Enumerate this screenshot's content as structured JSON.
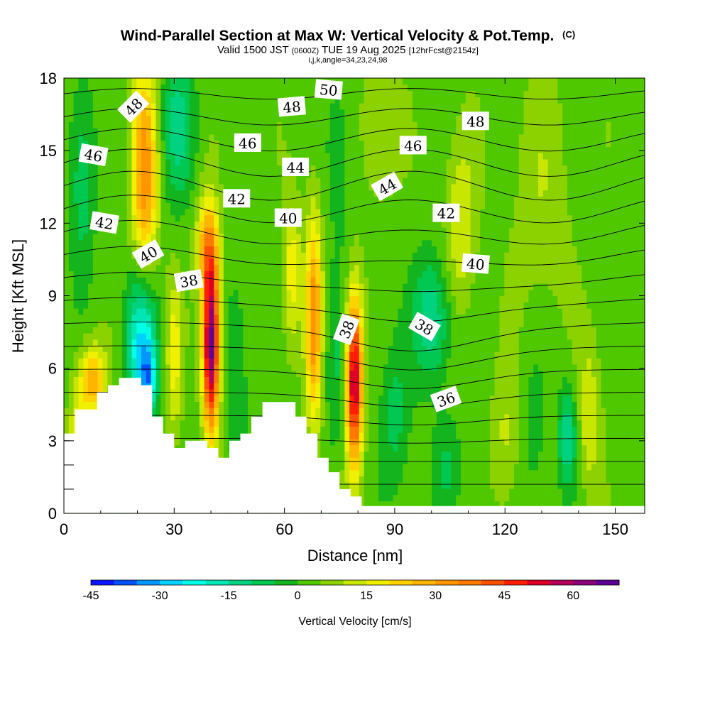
{
  "title": {
    "main": "Wind-Parallel Section at Max W: Vertical Velocity & Pot.Temp.",
    "main_suffix": "(C)",
    "valid_prefix": "Valid 1500 JST",
    "valid_utc": "(0600Z)",
    "valid_date": "TUE 19 Aug 2025",
    "forecast_info": "[12hrFcst@2154z]",
    "indices": "i,j,k,angle=34,23,24,98"
  },
  "chart_data": {
    "type": "heatmap",
    "xlabel": "Distance [nm]",
    "ylabel": "Height [Kft MSL]",
    "xlim": [
      0,
      158
    ],
    "ylim": [
      0,
      18
    ],
    "x_ticks": [
      "0",
      "30",
      "60",
      "90",
      "120",
      "150"
    ],
    "y_ticks": [
      "0",
      "3",
      "6",
      "9",
      "12",
      "15",
      "18"
    ],
    "x_tick_values": [
      0,
      30,
      60,
      90,
      120,
      150
    ],
    "y_tick_values": [
      0,
      3,
      6,
      9,
      12,
      15,
      18
    ],
    "colorbar": {
      "label": "Vertical Velocity [cm/s]",
      "min": -45,
      "max": 70,
      "step": 5,
      "tick_values": [
        -45,
        -30,
        -15,
        0,
        15,
        30,
        45,
        60
      ],
      "tick_labels": [
        "-45",
        "-30",
        "-15",
        "0",
        "15",
        "30",
        "45",
        "60"
      ],
      "colors": [
        "#0a14ff",
        "#0050ff",
        "#0096ff",
        "#00d2ff",
        "#00ffe6",
        "#00e6b4",
        "#00d282",
        "#00c850",
        "#14b41e",
        "#50c800",
        "#8cd200",
        "#c8e600",
        "#f0f000",
        "#ffd200",
        "#ffb400",
        "#ff9600",
        "#ff7800",
        "#ff5000",
        "#ff1e00",
        "#dc0028",
        "#b4005a",
        "#8c0078",
        "#5a0096"
      ]
    },
    "vertical_velocity_cells": [
      {
        "x": 4,
        "z": 2.0,
        "sx": 2.5,
        "sz": 3.0,
        "w": 20
      },
      {
        "x": 8,
        "z": 5.5,
        "sx": 3.5,
        "sz": 1.5,
        "w": 25
      },
      {
        "x": 5,
        "z": 14,
        "sx": 3.5,
        "sz": 4.0,
        "w": -12
      },
      {
        "x": 21,
        "z": 7.0,
        "sx": 4.0,
        "sz": 3.0,
        "w": -30
      },
      {
        "x": 23,
        "z": 5.5,
        "sx": 2.0,
        "sz": 1.5,
        "w": -20
      },
      {
        "x": 22,
        "z": 14,
        "sx": 3.5,
        "sz": 4.5,
        "w": 30
      },
      {
        "x": 40,
        "z": 7.0,
        "sx": 2.2,
        "sz": 3.5,
        "w": 65
      },
      {
        "x": 39,
        "z": 11,
        "sx": 3.0,
        "sz": 2.0,
        "w": 25
      },
      {
        "x": 31,
        "z": 16,
        "sx": 4.5,
        "sz": 3.0,
        "w": -15
      },
      {
        "x": 30,
        "z": 6.5,
        "sx": 2.0,
        "sz": 3.0,
        "w": 15
      },
      {
        "x": 47,
        "z": 6.0,
        "sx": 3.0,
        "sz": 4.0,
        "w": -8
      },
      {
        "x": 68,
        "z": 8.0,
        "sx": 2.2,
        "sz": 4.5,
        "w": 30
      },
      {
        "x": 62,
        "z": 10,
        "sx": 2.5,
        "sz": 3.0,
        "w": 15
      },
      {
        "x": 74,
        "z": 6.0,
        "sx": 3.0,
        "sz": 3.5,
        "w": -8
      },
      {
        "x": 79,
        "z": 5.5,
        "sx": 2.2,
        "sz": 3.5,
        "w": 55
      },
      {
        "x": 90,
        "z": 4.0,
        "sx": 4.0,
        "sz": 3.0,
        "w": -10
      },
      {
        "x": 100,
        "z": 8.0,
        "sx": 5.0,
        "sz": 2.5,
        "w": -18
      },
      {
        "x": 108,
        "z": 12,
        "sx": 4.0,
        "sz": 3.5,
        "w": 12
      },
      {
        "x": 104,
        "z": 2.0,
        "sx": 4.0,
        "sz": 2.0,
        "w": -8
      },
      {
        "x": 120,
        "z": 3.0,
        "sx": 3.5,
        "sz": 3.0,
        "w": 8
      },
      {
        "x": 128,
        "z": 3.5,
        "sx": 3.0,
        "sz": 3.0,
        "w": -6
      },
      {
        "x": 137,
        "z": 3.2,
        "sx": 2.5,
        "sz": 2.0,
        "w": -18
      },
      {
        "x": 143,
        "z": 4.0,
        "sx": 3.0,
        "sz": 3.0,
        "w": 12
      },
      {
        "x": 130,
        "z": 13,
        "sx": 8.0,
        "sz": 5.0,
        "w": 6
      },
      {
        "x": 75,
        "z": 15,
        "sx": 4.0,
        "sz": 4.0,
        "w": -6
      },
      {
        "x": 86,
        "z": 16,
        "sx": 5.0,
        "sz": 3.0,
        "w": 8
      }
    ],
    "terrain_heights_kft": [
      [
        0,
        3.3
      ],
      [
        3,
        4.3
      ],
      [
        6,
        4.3
      ],
      [
        9,
        5.0
      ],
      [
        12,
        5.3
      ],
      [
        15,
        5.6
      ],
      [
        18,
        5.6
      ],
      [
        21,
        5.3
      ],
      [
        24,
        4.0
      ],
      [
        27,
        3.3
      ],
      [
        30,
        2.7
      ],
      [
        33,
        3.0
      ],
      [
        36,
        3.0
      ],
      [
        39,
        2.7
      ],
      [
        42,
        2.3
      ],
      [
        45,
        3.0
      ],
      [
        48,
        3.3
      ],
      [
        51,
        4.0
      ],
      [
        54,
        4.6
      ],
      [
        57,
        4.6
      ],
      [
        60,
        4.6
      ],
      [
        63,
        4.0
      ],
      [
        66,
        3.3
      ],
      [
        69,
        2.3
      ],
      [
        72,
        1.7
      ],
      [
        75,
        1.0
      ],
      [
        78,
        0.7
      ],
      [
        81,
        0.3
      ],
      [
        84,
        0.3
      ],
      [
        87,
        0.3
      ],
      [
        90,
        0.3
      ],
      [
        158,
        0.3
      ]
    ],
    "theta_isolines_start": 32,
    "theta_isolines_end": 51,
    "theta_profile_points": [
      {
        "theta": 32,
        "x_z": [
          [
            0,
            0.0
          ],
          [
            158,
            0.0
          ]
        ]
      }
    ],
    "contour_labels": [
      {
        "text": "48",
        "x": 19,
        "z": 16.8,
        "rot": -45
      },
      {
        "text": "46",
        "x": 8,
        "z": 14.8,
        "rot": 10
      },
      {
        "text": "42",
        "x": 11,
        "z": 12.0,
        "rot": 10
      },
      {
        "text": "40",
        "x": 23,
        "z": 10.7,
        "rot": -30
      },
      {
        "text": "38",
        "x": 34,
        "z": 9.6,
        "rot": -10
      },
      {
        "text": "46",
        "x": 50,
        "z": 15.3,
        "rot": 0
      },
      {
        "text": "42",
        "x": 47,
        "z": 13.0,
        "rot": 0
      },
      {
        "text": "48",
        "x": 62,
        "z": 16.8,
        "rot": -5
      },
      {
        "text": "50",
        "x": 72,
        "z": 17.5,
        "rot": 5
      },
      {
        "text": "44",
        "x": 63,
        "z": 14.3,
        "rot": 0
      },
      {
        "text": "40",
        "x": 61,
        "z": 12.2,
        "rot": 0
      },
      {
        "text": "38",
        "x": 77,
        "z": 7.6,
        "rot": -70
      },
      {
        "text": "46",
        "x": 95,
        "z": 15.2,
        "rot": 0
      },
      {
        "text": "44",
        "x": 88,
        "z": 13.5,
        "rot": -30
      },
      {
        "text": "42",
        "x": 104,
        "z": 12.4,
        "rot": 0
      },
      {
        "text": "40",
        "x": 112,
        "z": 10.3,
        "rot": 5
      },
      {
        "text": "48",
        "x": 112,
        "z": 16.2,
        "rot": 0
      },
      {
        "text": "38",
        "x": 98,
        "z": 7.7,
        "rot": 30
      },
      {
        "text": "36",
        "x": 104,
        "z": 4.7,
        "rot": -20
      }
    ]
  }
}
